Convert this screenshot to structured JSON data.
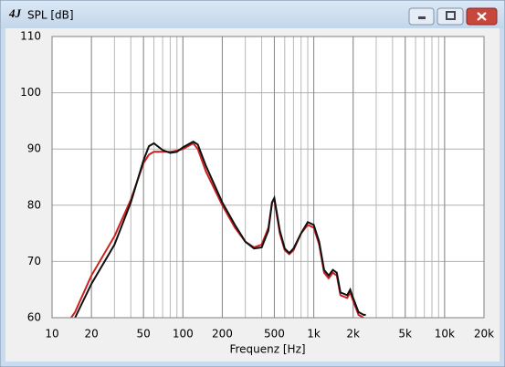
{
  "window": {
    "icon": "4J"
  },
  "chart_data": {
    "type": "line",
    "title": "SPL [dB]",
    "x_label": "Frequenz [Hz]",
    "x": [
      14,
      15,
      20,
      30,
      40,
      50,
      55,
      60,
      70,
      80,
      90,
      100,
      120,
      130,
      150,
      200,
      250,
      300,
      350,
      400,
      450,
      480,
      500,
      550,
      600,
      650,
      700,
      800,
      900,
      1000,
      1100,
      1200,
      1300,
      1400,
      1500,
      1600,
      1800,
      1900,
      2000,
      2200,
      2400,
      2500
    ],
    "series": [
      {
        "name": "red",
        "color": "#cc1f1f",
        "values": [
          60,
          61,
          67.5,
          74.5,
          81,
          87.5,
          89,
          89.5,
          89.5,
          89.5,
          89.7,
          90,
          91,
          90,
          86,
          80,
          76,
          73.5,
          72.5,
          73,
          76,
          80.5,
          81,
          75,
          72,
          71.3,
          72,
          75,
          76.5,
          76,
          73,
          68,
          67,
          68,
          67.5,
          64,
          63.5,
          64.5,
          63,
          60.5,
          60,
          null
        ]
      },
      {
        "name": "black",
        "color": "#111111",
        "values": [
          null,
          60,
          66,
          73,
          80.5,
          88,
          90.5,
          91,
          89.8,
          89.3,
          89.5,
          90.3,
          91.3,
          90.8,
          87,
          80.5,
          76.5,
          73.5,
          72.3,
          72.5,
          75.5,
          80.5,
          81.3,
          75.5,
          72.3,
          71.5,
          72.3,
          75,
          77,
          76.5,
          73.5,
          68.5,
          67.5,
          68.5,
          68,
          64.5,
          64,
          65,
          63.5,
          61,
          60.5,
          60.5
        ]
      }
    ],
    "xscale": "log",
    "xlim": [
      10,
      20000
    ],
    "xticks": [
      10,
      20,
      50,
      100,
      200,
      500,
      {
        "value": 1000,
        "label": "1k"
      },
      {
        "value": 2000,
        "label": "2k"
      },
      {
        "value": 5000,
        "label": "5k"
      },
      {
        "value": 10000,
        "label": "10k"
      },
      {
        "value": 20000,
        "label": "20k"
      }
    ],
    "ylim": [
      60,
      110
    ],
    "yticks": [
      60,
      70,
      80,
      90,
      100,
      110
    ],
    "grid": true
  }
}
